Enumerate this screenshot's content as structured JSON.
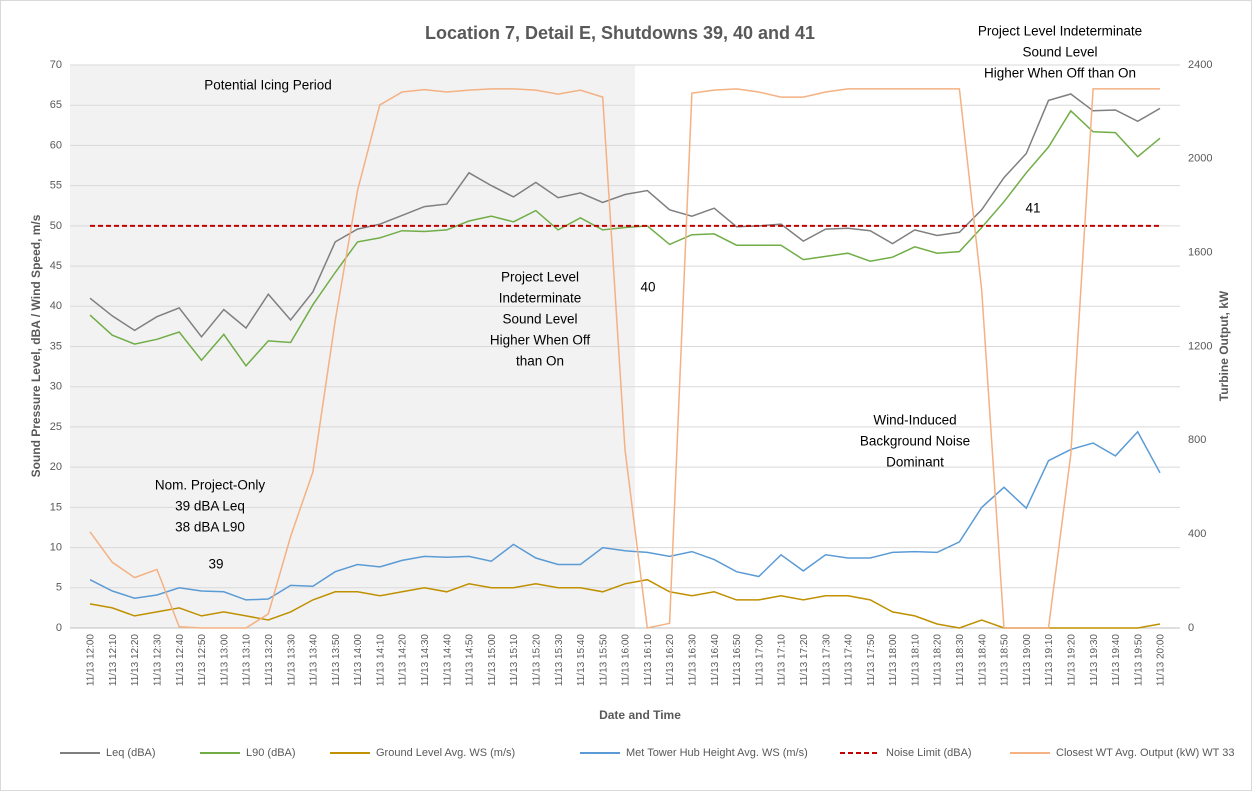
{
  "chart_data": {
    "type": "line",
    "title": "Location 7, Detail E, Shutdowns 39, 40 and 41",
    "x_label": "Date and Time",
    "y_label": "Sound Pressure Level, dBA / Wind Speed, m/s",
    "y2_label": "Turbine Output, kW",
    "categories": [
      "11/13 12:00",
      "11/13 12:10",
      "11/13 12:20",
      "11/13 12:30",
      "11/13 12:40",
      "11/13 12:50",
      "11/13 13:00",
      "11/13 13:10",
      "11/13 13:20",
      "11/13 13:30",
      "11/13 13:40",
      "11/13 13:50",
      "11/13 14:00",
      "11/13 14:10",
      "11/13 14:20",
      "11/13 14:30",
      "11/13 14:40",
      "11/13 14:50",
      "11/13 15:00",
      "11/13 15:10",
      "11/13 15:20",
      "11/13 15:30",
      "11/13 15:40",
      "11/13 15:50",
      "11/13 16:00",
      "11/13 16:10",
      "11/13 16:20",
      "11/13 16:30",
      "11/13 16:40",
      "11/13 16:50",
      "11/13 17:00",
      "11/13 17:10",
      "11/13 17:20",
      "11/13 17:30",
      "11/13 17:40",
      "11/13 17:50",
      "11/13 18:00",
      "11/13 18:10",
      "11/13 18:20",
      "11/13 18:30",
      "11/13 18:40",
      "11/13 18:50",
      "11/13 19:00",
      "11/13 19:10",
      "11/13 19:20",
      "11/13 19:30",
      "11/13 19:40",
      "11/13 19:50",
      "11/13 20:00"
    ],
    "ylim": [
      0,
      70
    ],
    "yticks": [
      0,
      5,
      10,
      15,
      20,
      25,
      30,
      35,
      40,
      45,
      50,
      55,
      60,
      65,
      70
    ],
    "y2lim": [
      0,
      2400
    ],
    "y2ticks": [
      0,
      400,
      800,
      1200,
      1600,
      2000,
      2400
    ],
    "grid": true,
    "series": [
      {
        "name": "Leq (dBA)",
        "color": "#7f7f7f",
        "values": [
          41,
          38.8,
          37,
          38.7,
          39.8,
          36.2,
          39.6,
          37.3,
          41.5,
          38.3,
          41.8,
          48,
          49.6,
          50.2,
          51.3,
          52.4,
          52.7,
          56.6,
          55,
          53.6,
          55.4,
          53.5,
          54.1,
          52.9,
          53.9,
          54.4,
          52,
          51.2,
          52.2,
          49.9,
          50,
          50.2,
          48.1,
          49.6,
          49.7,
          49.4,
          47.8,
          49.5,
          48.8,
          49.2,
          52,
          56,
          59,
          65.6,
          66.4,
          64.3,
          64.4,
          63,
          64.6
        ]
      },
      {
        "name": "L90 (dBA)",
        "color": "#70ad47",
        "values": [
          38.9,
          36.4,
          35.3,
          35.9,
          36.8,
          33.3,
          36.5,
          32.6,
          35.7,
          35.5,
          40.2,
          44.2,
          48,
          48.5,
          49.4,
          49.3,
          49.5,
          50.6,
          51.2,
          50.5,
          51.9,
          49.5,
          51,
          49.5,
          49.8,
          50,
          47.7,
          48.9,
          49,
          47.6,
          47.6,
          47.6,
          45.8,
          46.2,
          46.6,
          45.6,
          46.1,
          47.4,
          46.6,
          46.8,
          49.8,
          53,
          56.6,
          59.8,
          64.3,
          61.7,
          61.6,
          58.6,
          60.9
        ]
      },
      {
        "name": "Ground Level Avg. WS (m/s)",
        "color": "#bf9000",
        "values": [
          3,
          2.5,
          1.5,
          2,
          2.5,
          1.5,
          2,
          1.5,
          1,
          2,
          3.5,
          4.5,
          4.5,
          4,
          4.5,
          5,
          4.5,
          5.5,
          5,
          5,
          5.5,
          5,
          5,
          4.5,
          5.5,
          6,
          4.5,
          4,
          4.5,
          3.5,
          3.5,
          4,
          3.5,
          4,
          4,
          3.5,
          2,
          1.5,
          0.5,
          0,
          1,
          0,
          0,
          0,
          0,
          0,
          0,
          0,
          0.5
        ]
      },
      {
        "name": "Met Tower Hub Height Avg. WS (m/s)",
        "color": "#5b9bd5",
        "values": [
          6,
          4.6,
          3.7,
          4.1,
          5,
          4.6,
          4.5,
          3.5,
          3.6,
          5.3,
          5.2,
          7,
          7.9,
          7.6,
          8.4,
          8.9,
          8.8,
          8.9,
          8.3,
          10.4,
          8.7,
          7.9,
          7.9,
          10,
          9.6,
          9.4,
          8.9,
          9.5,
          8.5,
          7,
          6.4,
          9.1,
          7.1,
          9.1,
          8.7,
          8.7,
          9.4,
          9.5,
          9.4,
          10.7,
          15,
          17.5,
          14.9,
          20.8,
          22.2,
          23,
          21.4,
          24.4,
          19.3
        ]
      },
      {
        "name": "Noise Limit (dBA)",
        "color": "#c00000",
        "dashed": true,
        "values": [
          50,
          50,
          50,
          50,
          50,
          50,
          50,
          50,
          50,
          50,
          50,
          50,
          50,
          50,
          50,
          50,
          50,
          50,
          50,
          50,
          50,
          50,
          50,
          50,
          50,
          50,
          50,
          50,
          50,
          50,
          50,
          50,
          50,
          50,
          50,
          50,
          50,
          50,
          50,
          50,
          50,
          50,
          50,
          50,
          50,
          50,
          50,
          50,
          50
        ]
      },
      {
        "name": "Closest WT Avg. Output (kW) WT 33",
        "color": "#f4b183",
        "axis": "y2",
        "values": [
          410,
          280,
          215,
          250,
          5,
          0,
          0,
          0,
          60,
          390,
          665,
          1310,
          1865,
          2230,
          2285,
          2295,
          2285,
          2293,
          2298,
          2298,
          2293,
          2276,
          2293,
          2263,
          760,
          0,
          20,
          2280,
          2293,
          2298,
          2285,
          2263,
          2263,
          2285,
          2298,
          2298,
          2298,
          2298,
          2298,
          2298,
          1440,
          0,
          0,
          0,
          740,
          2298,
          2298,
          2298,
          2298
        ]
      }
    ],
    "annotations": [
      [
        "Potential Icing Period"
      ],
      [
        "Project Level",
        "Indeterminate",
        "Sound Level",
        "Higher When Off",
        "than On"
      ],
      [
        "40"
      ],
      [
        "41"
      ],
      [
        "Project Level Indeterminate",
        "Sound Level",
        "Higher When Off than On"
      ],
      [
        "Wind-Induced",
        "Background Noise",
        "Dominant"
      ],
      [
        "Nom. Project-Only",
        "39 dBA Leq",
        "38 dBA L90"
      ],
      [
        "39"
      ]
    ]
  }
}
